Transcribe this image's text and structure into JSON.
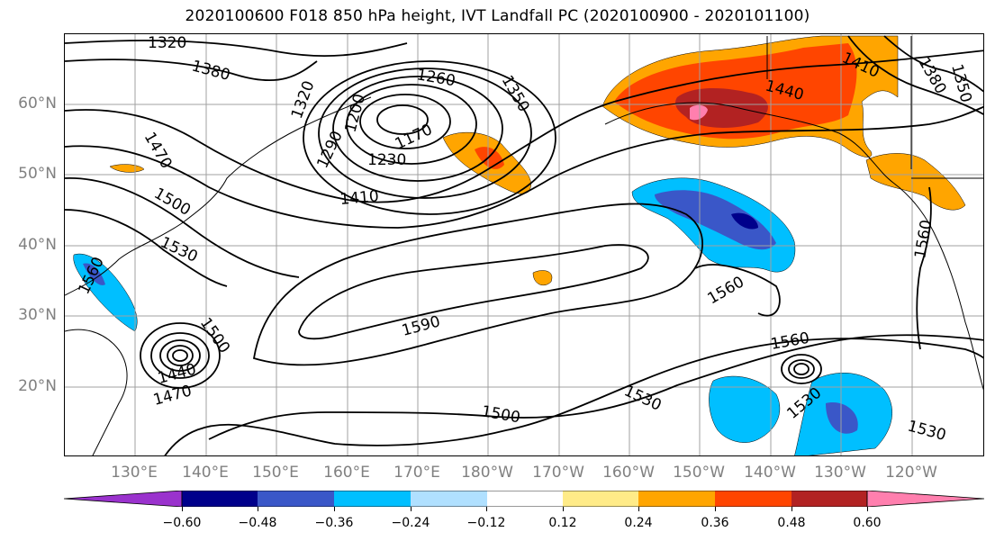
{
  "title": "2020100600 F018 850 hPa height, IVT Landfall PC (2020100900 - 2020101100)",
  "lat_labels": [
    "60°N",
    "50°N",
    "40°N",
    "30°N",
    "20°N"
  ],
  "lon_labels": [
    "130°E",
    "140°E",
    "150°E",
    "160°E",
    "170°E",
    "180°W",
    "170°W",
    "160°W",
    "150°W",
    "140°W",
    "130°W",
    "120°W"
  ],
  "colorbar": {
    "ticks": [
      "−0.60",
      "−0.48",
      "−0.36",
      "−0.24",
      "−0.12",
      "0.12",
      "0.24",
      "0.36",
      "0.48",
      "0.60"
    ],
    "colors": [
      "#9a32cd",
      "#00008b",
      "#3a57c8",
      "#00bfff",
      "#b0e0ff",
      "#ffffff",
      "#ffeb88",
      "#ffa500",
      "#ff4500",
      "#b22222",
      "#ff7fae"
    ]
  },
  "contour_labels": [
    "1320",
    "1380",
    "1470",
    "1500",
    "1530",
    "1560",
    "1320",
    "1260",
    "1350",
    "1200",
    "1170",
    "1230",
    "1290",
    "1410",
    "1590",
    "1440",
    "1470",
    "1500",
    "1440",
    "1410",
    "1380",
    "1350",
    "1560",
    "1560",
    "1560",
    "1530",
    "1530",
    "1500",
    "1530"
  ],
  "colors": {
    "contour": "#000000",
    "grid": "#a0a0a0",
    "axis_labels": "#808080"
  }
}
